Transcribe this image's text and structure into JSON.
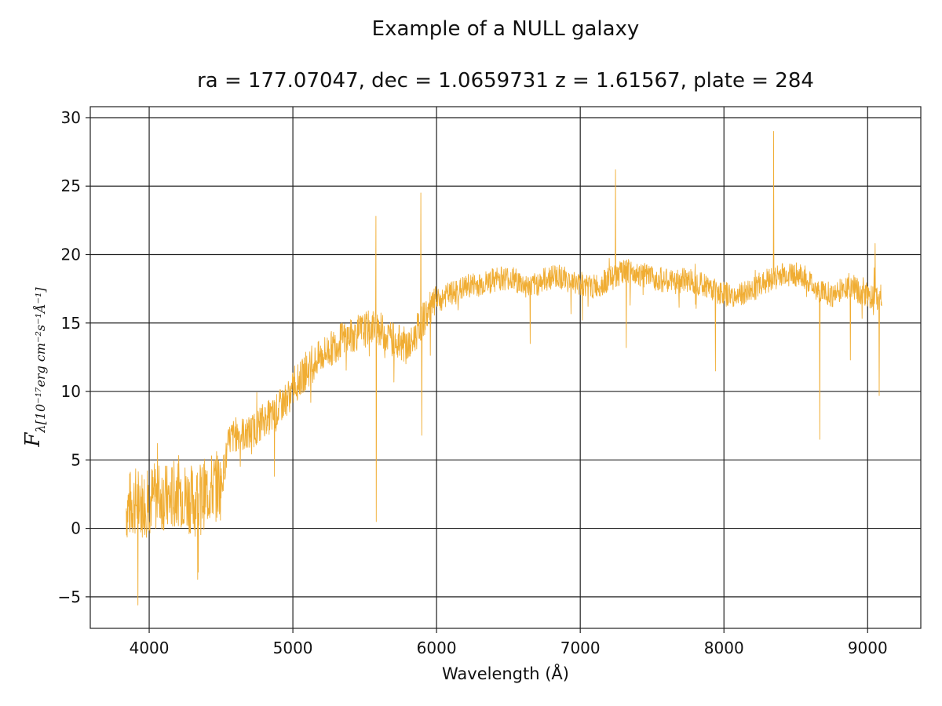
{
  "chart_data": {
    "type": "line",
    "title": "Example of a NULL galaxy",
    "subtitle": "ra = 177.07047, dec = 1.0659731 z = 1.61567, plate = 284",
    "xlabel": "Wavelength (Å)",
    "ylabel_main": "F",
    "ylabel_sub": "λ[10⁻¹⁷erg cm⁻²s⁻¹Å⁻¹]",
    "xlim": [
      3590,
      9370
    ],
    "ylim": [
      -7.3,
      30.8
    ],
    "xticks": [
      4000,
      5000,
      6000,
      7000,
      8000,
      9000
    ],
    "yticks": [
      -5,
      0,
      5,
      10,
      15,
      20,
      25,
      30
    ],
    "grid": true,
    "line_color": "#f0ad33",
    "grid_color": "#222222",
    "series": [
      {
        "x": [
          3840,
          3900,
          3960,
          4020,
          4080,
          4140,
          4200,
          4260,
          4320,
          4380,
          4440,
          4500,
          4560,
          4620,
          4680,
          4740,
          4800,
          4860,
          4920,
          4980,
          5040,
          5100,
          5160,
          5220,
          5280,
          5340,
          5400,
          5460,
          5520,
          5580,
          5640,
          5700,
          5760,
          5820,
          5880,
          5940,
          6000,
          6060,
          6120,
          6180,
          6240,
          6300,
          6360,
          6420,
          6480,
          6540,
          6600,
          6660,
          6720,
          6780,
          6840,
          6900,
          6960,
          7020,
          7080,
          7140,
          7200,
          7260,
          7320,
          7380,
          7440,
          7500,
          7560,
          7620,
          7680,
          7740,
          7800,
          7860,
          7920,
          7980,
          8040,
          8100,
          8160,
          8220,
          8280,
          8340,
          8400,
          8460,
          8520,
          8580,
          8640,
          8700,
          8760,
          8820,
          8880,
          8940,
          9000,
          9060,
          9100
        ],
        "values": [
          1.5,
          2.0,
          1.8,
          2.2,
          2.5,
          2.0,
          2.8,
          2.3,
          2.0,
          2.5,
          3.0,
          3.2,
          6.5,
          7.0,
          6.8,
          7.3,
          8.0,
          8.2,
          9.0,
          9.8,
          10.8,
          11.5,
          12.2,
          12.8,
          13.2,
          13.8,
          14.0,
          14.3,
          14.6,
          14.8,
          14.2,
          13.8,
          13.5,
          13.3,
          14.8,
          15.8,
          16.5,
          17.0,
          17.2,
          17.5,
          17.8,
          17.8,
          18.0,
          18.2,
          18.3,
          18.2,
          17.8,
          17.6,
          18.0,
          18.3,
          18.5,
          18.2,
          17.9,
          17.8,
          17.6,
          17.8,
          18.2,
          18.5,
          18.8,
          18.6,
          18.5,
          18.3,
          18.2,
          18.0,
          18.0,
          18.2,
          18.0,
          17.8,
          17.5,
          17.2,
          17.0,
          17.0,
          17.2,
          17.6,
          18.0,
          18.3,
          18.5,
          18.6,
          18.5,
          18.2,
          17.5,
          17.2,
          17.0,
          17.5,
          17.8,
          17.3,
          17.0,
          16.8,
          17.0
        ]
      }
    ]
  }
}
